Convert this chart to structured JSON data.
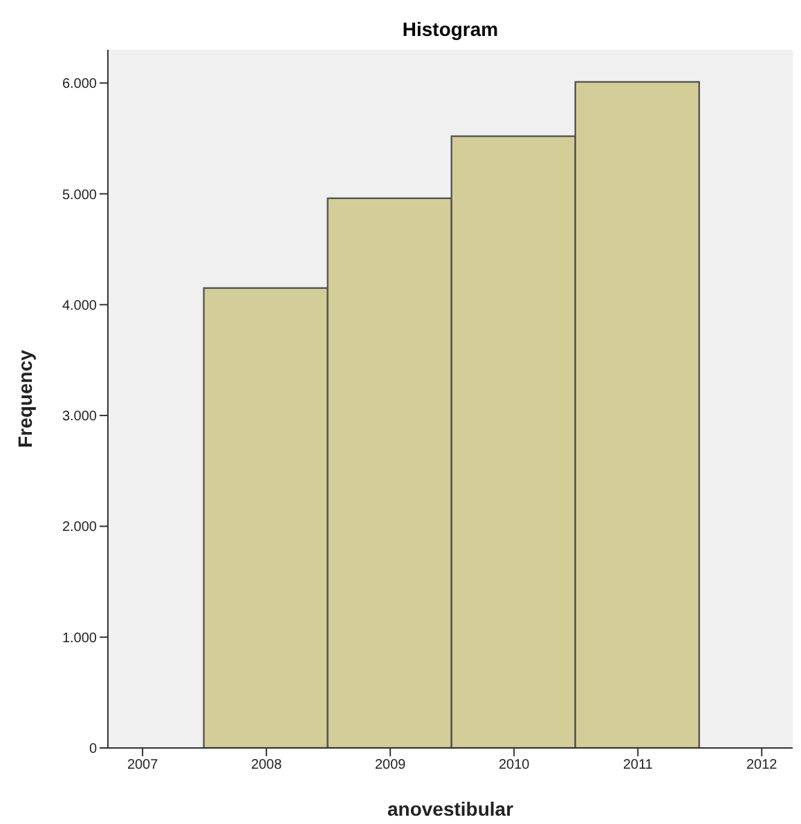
{
  "chart_data": {
    "type": "histogram",
    "title": "Histogram",
    "xlabel": "anovestibular",
    "ylabel": "Frequency",
    "bins": [
      2007.5,
      2008.5,
      2009.5,
      2010.5,
      2011.5
    ],
    "values": [
      4150,
      4960,
      5520,
      6010
    ],
    "color": "#d3ce97",
    "xlim": [
      2006.72,
      2012.25
    ],
    "xticks": [
      2007,
      2008,
      2009,
      2010,
      2011,
      2012
    ],
    "ylim": [
      0,
      6300
    ],
    "yticks": [
      0,
      {
        "value": 1000,
        "label": "1.000"
      },
      {
        "value": 2000,
        "label": "2.000"
      },
      {
        "value": 3000,
        "label": "3.000"
      },
      {
        "value": 4000,
        "label": "4.000"
      },
      {
        "value": 5000,
        "label": "5.000"
      },
      {
        "value": 6000,
        "label": "6.000"
      }
    ],
    "grid": false,
    "legend": false
  }
}
